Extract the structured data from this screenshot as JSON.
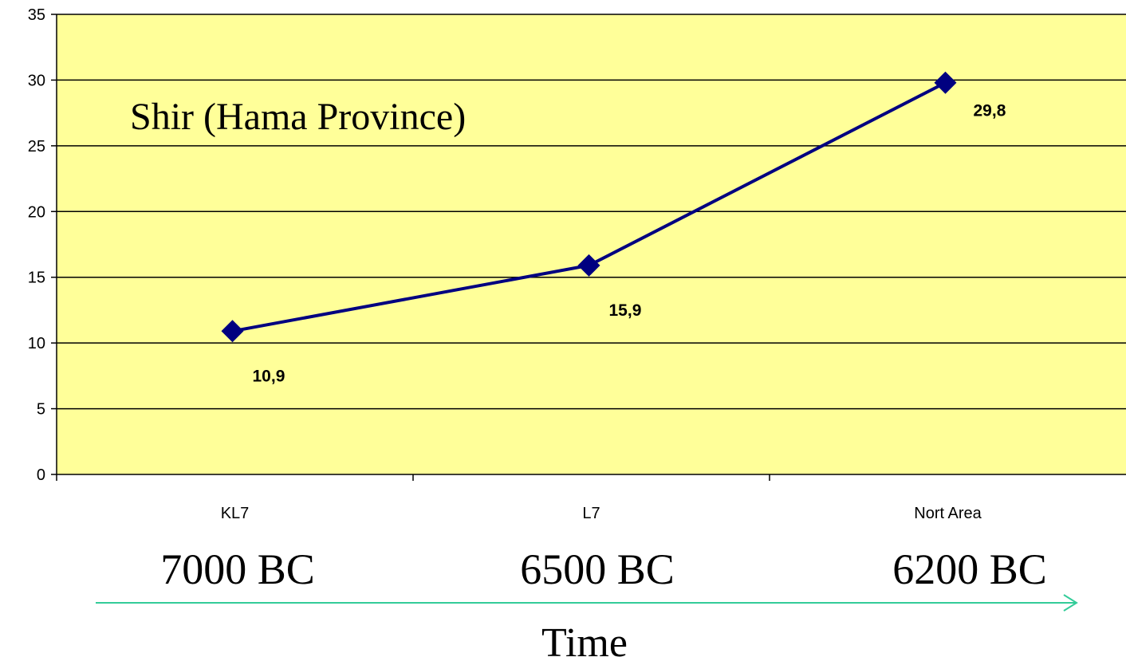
{
  "chart_data": {
    "type": "line",
    "title": "Shir (Hama Province)",
    "categories": [
      "KL7",
      "L7",
      "Nort Area"
    ],
    "series": [
      {
        "values": [
          10.9,
          15.9,
          29.8
        ]
      }
    ],
    "data_labels": [
      "10,9",
      "15,9",
      "29,8"
    ],
    "y_ticks": [
      "0",
      "5",
      "10",
      "15",
      "20",
      "25",
      "30",
      "35"
    ],
    "ylim": [
      0,
      35
    ],
    "grid": true,
    "plot_background": "#ffff99",
    "line_color": "#000080",
    "marker": "diamond"
  },
  "periods": [
    "7000 BC",
    "6500 BC",
    "6200 BC"
  ],
  "time_axis": {
    "label": "Time",
    "arrow_color": "#33cc99"
  }
}
